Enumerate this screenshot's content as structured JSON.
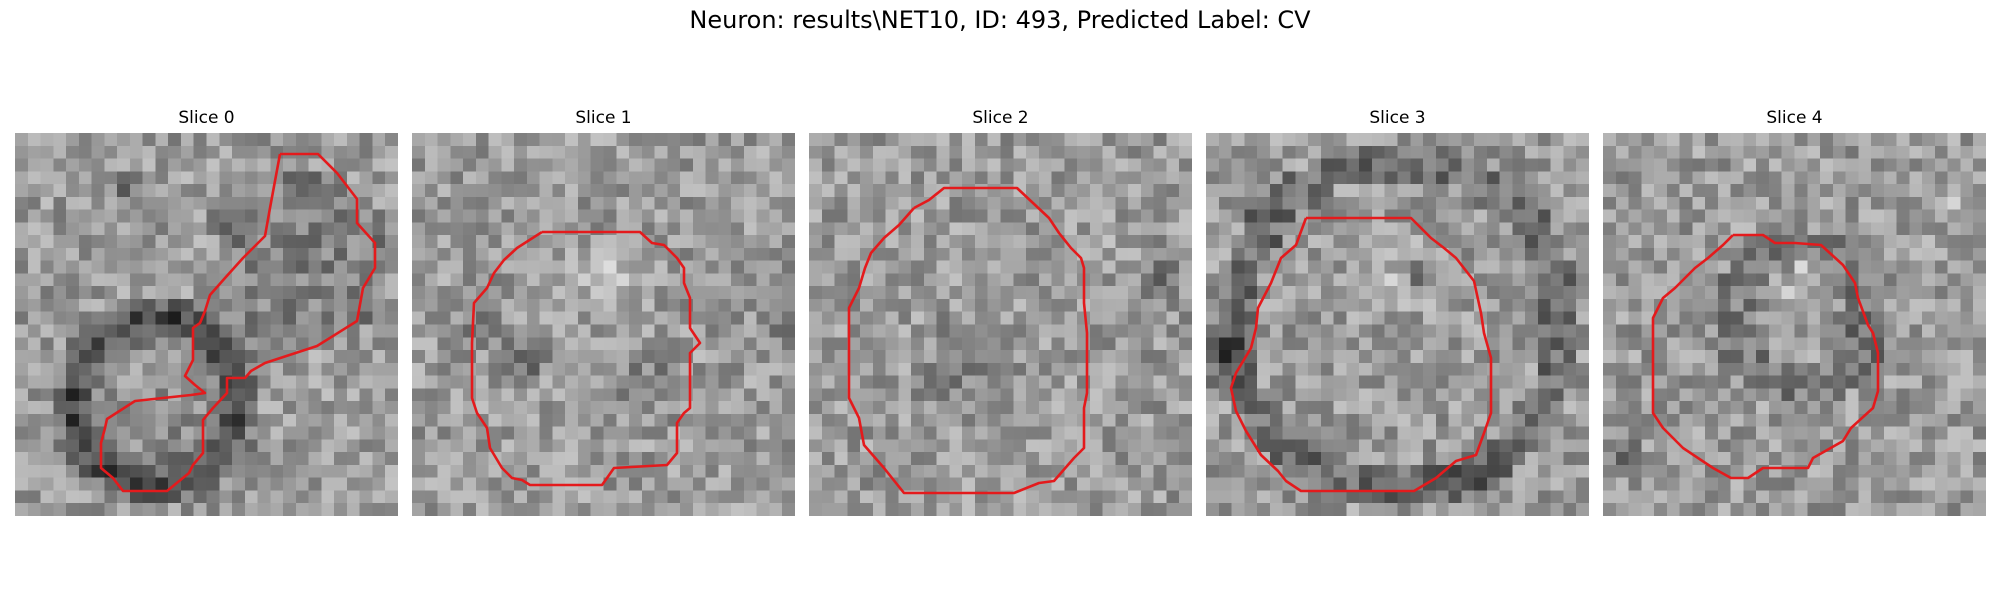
{
  "figure": {
    "title": "Neuron: results\\NET10, ID: 493, Predicted Label: CV"
  },
  "contour_color": "#e41a1c",
  "panels": [
    {
      "label": "Slice 0"
    },
    {
      "label": "Slice 1"
    },
    {
      "label": "Slice 2"
    },
    {
      "label": "Slice 3"
    },
    {
      "label": "Slice 4"
    }
  ]
}
